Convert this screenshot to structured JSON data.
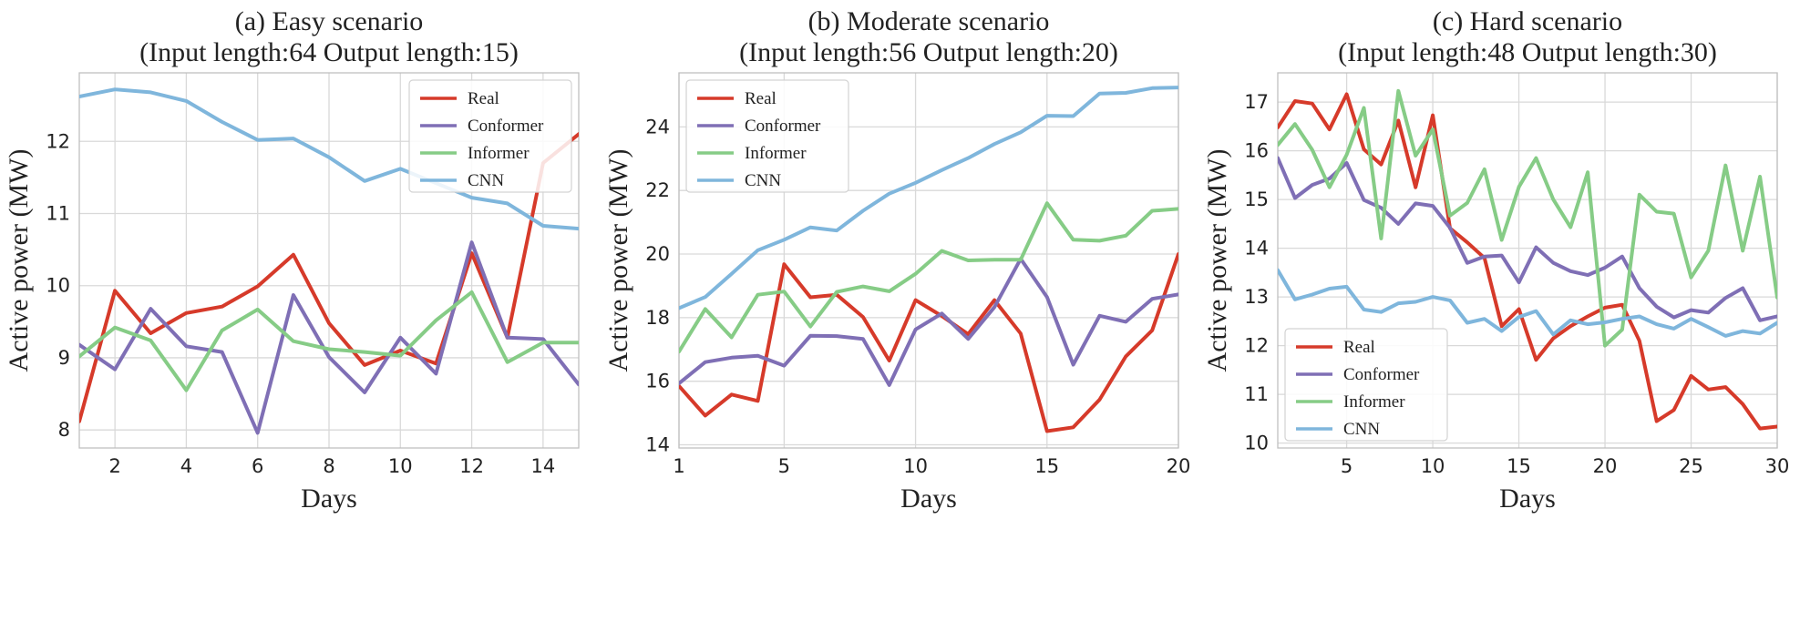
{
  "chart_data": [
    {
      "type": "line",
      "title_line1": "(a) Easy scenario",
      "title_line2": "(Input length:64  Output length:15)",
      "xlabel": "Days",
      "ylabel": "Active power (MW)",
      "xlim": [
        1,
        15
      ],
      "ylim": [
        7.75,
        12.95
      ],
      "xticks": [
        2,
        4,
        6,
        8,
        10,
        12,
        14
      ],
      "yticks": [
        8,
        9,
        10,
        11,
        12
      ],
      "legend_position": "top-right",
      "x": [
        1,
        2,
        3,
        4,
        5,
        6,
        7,
        8,
        9,
        10,
        11,
        12,
        13,
        14,
        15
      ],
      "series": [
        {
          "name": "Real",
          "color": "#d63a2a",
          "values": [
            8.12,
            9.93,
            9.34,
            9.62,
            9.71,
            9.99,
            10.43,
            9.48,
            8.9,
            9.1,
            8.92,
            10.45,
            9.28,
            11.7,
            12.1
          ]
        },
        {
          "name": "Conformer",
          "color": "#7f6fb5",
          "values": [
            9.18,
            8.84,
            9.68,
            9.16,
            9.08,
            7.96,
            9.87,
            9.01,
            8.52,
            9.28,
            8.78,
            10.6,
            9.28,
            9.26,
            8.63
          ]
        },
        {
          "name": "Informer",
          "color": "#86cc86",
          "values": [
            9.02,
            9.42,
            9.24,
            8.55,
            9.38,
            9.67,
            9.23,
            9.12,
            9.08,
            9.03,
            9.52,
            9.91,
            8.94,
            9.21,
            9.21
          ]
        },
        {
          "name": "CNN",
          "color": "#7fb6dc",
          "values": [
            12.62,
            12.72,
            12.68,
            12.56,
            12.27,
            12.02,
            12.04,
            11.78,
            11.45,
            11.62,
            11.42,
            11.22,
            11.14,
            10.83,
            10.79
          ]
        }
      ]
    },
    {
      "type": "line",
      "title_line1": "(b) Moderate scenario",
      "title_line2": "(Input length:56  Output length:20)",
      "xlabel": "Days",
      "ylabel": "Active power (MW)",
      "xlim": [
        1,
        20
      ],
      "ylim": [
        13.9,
        25.7
      ],
      "xticks": [
        1,
        5,
        10,
        15,
        20
      ],
      "yticks": [
        14,
        16,
        18,
        20,
        22,
        24
      ],
      "legend_position": "top-left",
      "x": [
        1,
        2,
        3,
        4,
        5,
        6,
        7,
        8,
        9,
        10,
        11,
        12,
        13,
        14,
        15,
        16,
        17,
        18,
        19,
        20
      ],
      "series": [
        {
          "name": "Real",
          "color": "#d63a2a",
          "values": [
            15.85,
            14.92,
            15.58,
            15.38,
            19.68,
            18.64,
            18.72,
            18.02,
            16.65,
            18.55,
            18.05,
            17.48,
            18.55,
            17.5,
            14.43,
            14.55,
            15.42,
            16.78,
            17.6,
            20.0
          ]
        },
        {
          "name": "Conformer",
          "color": "#7f6fb5",
          "values": [
            15.93,
            16.6,
            16.74,
            16.8,
            16.49,
            17.43,
            17.42,
            17.33,
            15.88,
            17.63,
            18.13,
            17.33,
            18.33,
            19.85,
            18.65,
            16.52,
            18.06,
            17.87,
            18.59,
            18.73
          ]
        },
        {
          "name": "Informer",
          "color": "#86cc86",
          "values": [
            16.93,
            18.27,
            17.38,
            18.72,
            18.82,
            17.72,
            18.81,
            18.98,
            18.83,
            19.38,
            20.1,
            19.8,
            19.82,
            19.82,
            21.6,
            20.45,
            20.42,
            20.58,
            21.36,
            21.42
          ]
        },
        {
          "name": "CNN",
          "color": "#7fb6dc",
          "values": [
            18.3,
            18.65,
            19.38,
            20.12,
            20.45,
            20.84,
            20.74,
            21.36,
            21.9,
            22.24,
            22.64,
            23.02,
            23.46,
            23.83,
            24.35,
            24.34,
            25.05,
            25.07,
            25.22,
            25.24
          ]
        }
      ]
    },
    {
      "type": "line",
      "title_line1": "(c) Hard scenario",
      "title_line2": "(Input length:48  Output length:30)",
      "xlabel": "Days",
      "ylabel": "Active power (MW)",
      "xlim": [
        1,
        30
      ],
      "ylim": [
        9.9,
        17.6
      ],
      "xticks": [
        5,
        10,
        15,
        20,
        25,
        30
      ],
      "yticks": [
        10,
        11,
        12,
        13,
        14,
        15,
        16,
        17
      ],
      "legend_position": "bottom-left",
      "x": [
        1,
        2,
        3,
        4,
        5,
        6,
        7,
        8,
        9,
        10,
        11,
        12,
        13,
        14,
        15,
        16,
        17,
        18,
        19,
        20,
        21,
        22,
        23,
        24,
        25,
        26,
        27,
        28,
        29,
        30
      ],
      "series": [
        {
          "name": "Real",
          "color": "#d63a2a",
          "values": [
            16.48,
            17.02,
            16.97,
            16.44,
            17.16,
            16.03,
            15.72,
            16.62,
            15.25,
            16.73,
            14.41,
            14.12,
            13.8,
            12.4,
            12.75,
            11.71,
            12.15,
            12.4,
            12.6,
            12.78,
            12.84,
            12.1,
            10.45,
            10.68,
            11.38,
            11.1,
            11.15,
            10.8,
            10.3,
            10.34
          ]
        },
        {
          "name": "Conformer",
          "color": "#7f6fb5",
          "values": [
            15.85,
            15.03,
            15.3,
            15.43,
            15.75,
            14.99,
            14.83,
            14.5,
            14.92,
            14.87,
            14.42,
            13.7,
            13.83,
            13.85,
            13.3,
            14.02,
            13.7,
            13.53,
            13.45,
            13.6,
            13.83,
            13.18,
            12.8,
            12.58,
            12.73,
            12.68,
            12.98,
            13.18,
            12.52,
            12.6
          ]
        },
        {
          "name": "Informer",
          "color": "#86cc86",
          "values": [
            16.12,
            16.55,
            16.02,
            15.25,
            15.92,
            16.88,
            14.2,
            17.23,
            15.9,
            16.44,
            14.67,
            14.93,
            15.62,
            14.17,
            15.26,
            15.85,
            15.0,
            14.43,
            15.56,
            12.0,
            12.33,
            15.1,
            14.75,
            14.71,
            13.4,
            13.95,
            15.7,
            13.95,
            15.47,
            12.99
          ]
        },
        {
          "name": "CNN",
          "color": "#7fb6dc",
          "values": [
            13.55,
            12.95,
            13.05,
            13.17,
            13.21,
            12.74,
            12.69,
            12.87,
            12.9,
            13.0,
            12.93,
            12.47,
            12.55,
            12.3,
            12.59,
            12.71,
            12.23,
            12.52,
            12.44,
            12.48,
            12.55,
            12.6,
            12.44,
            12.35,
            12.55,
            12.38,
            12.2,
            12.3,
            12.25,
            12.47
          ]
        }
      ]
    }
  ]
}
